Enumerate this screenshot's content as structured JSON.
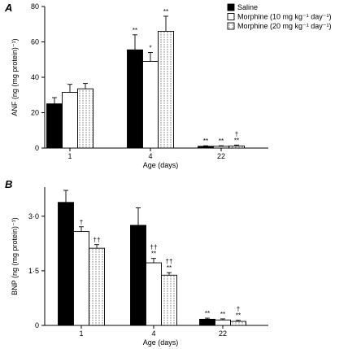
{
  "legend": {
    "placement": "top-right",
    "entries": [
      {
        "label": "Saline",
        "style": "solid"
      },
      {
        "label": "Morphine (10 mg kg⁻¹ day⁻¹)",
        "style": "open"
      },
      {
        "label": "Morphine (20 mg kg⁻¹ day⁻¹)",
        "style": "hatched"
      }
    ]
  },
  "colors": {
    "saline": "#000000",
    "open": "#ffffff",
    "hatch": "#888888"
  },
  "chart_data": [
    {
      "panel": "A",
      "type": "bar",
      "xlabel": "Age (days)",
      "ylabel": "ANF (ng (mg protein)⁻¹)",
      "ylim": [
        0,
        80
      ],
      "yticks": [
        0,
        20,
        40,
        60,
        80
      ],
      "ytick_labels": [
        "0",
        "20",
        "40",
        "60",
        "80"
      ],
      "categories": [
        "1",
        "4",
        "22"
      ],
      "series": [
        {
          "name": "Saline",
          "values": [
            25,
            55.5,
            1
          ],
          "errors": [
            3.5,
            8.5,
            0.3
          ],
          "marks": [
            "",
            "**",
            "**"
          ]
        },
        {
          "name": "Morphine (10 mg kg⁻¹ day⁻¹)",
          "values": [
            31.5,
            49,
            1
          ],
          "errors": [
            4.5,
            5,
            0.3
          ],
          "marks": [
            "",
            "*",
            "**"
          ]
        },
        {
          "name": "Morphine (20 mg kg⁻¹ day⁻¹)",
          "values": [
            33.5,
            66,
            1.2
          ],
          "errors": [
            3,
            8.5,
            0.5
          ],
          "marks": [
            "",
            "**",
            "†\n**"
          ]
        }
      ]
    },
    {
      "panel": "B",
      "type": "bar",
      "xlabel": "Age (days)",
      "ylabel": "BNP (ng (mg protein)⁻¹)",
      "ylim": [
        0,
        3.8
      ],
      "yticks": [
        0,
        1.5,
        3.0
      ],
      "ytick_labels": [
        "0",
        "1·5",
        "3·0"
      ],
      "categories": [
        "1",
        "4",
        "22"
      ],
      "series": [
        {
          "name": "Saline",
          "values": [
            3.38,
            2.75,
            0.17
          ],
          "errors": [
            0.33,
            0.48,
            0.03
          ],
          "marks": [
            "",
            "",
            "**"
          ]
        },
        {
          "name": "Morphine (10 mg kg⁻¹ day⁻¹)",
          "values": [
            2.58,
            1.72,
            0.15
          ],
          "errors": [
            0.13,
            0.12,
            0.03
          ],
          "marks": [
            "†",
            "††\n**",
            "**"
          ]
        },
        {
          "name": "Morphine (20 mg kg⁻¹ day⁻¹)",
          "values": [
            2.12,
            1.38,
            0.11
          ],
          "errors": [
            0.1,
            0.07,
            0.03
          ],
          "marks": [
            "††",
            "††\n**",
            "†\n**"
          ]
        }
      ]
    }
  ]
}
